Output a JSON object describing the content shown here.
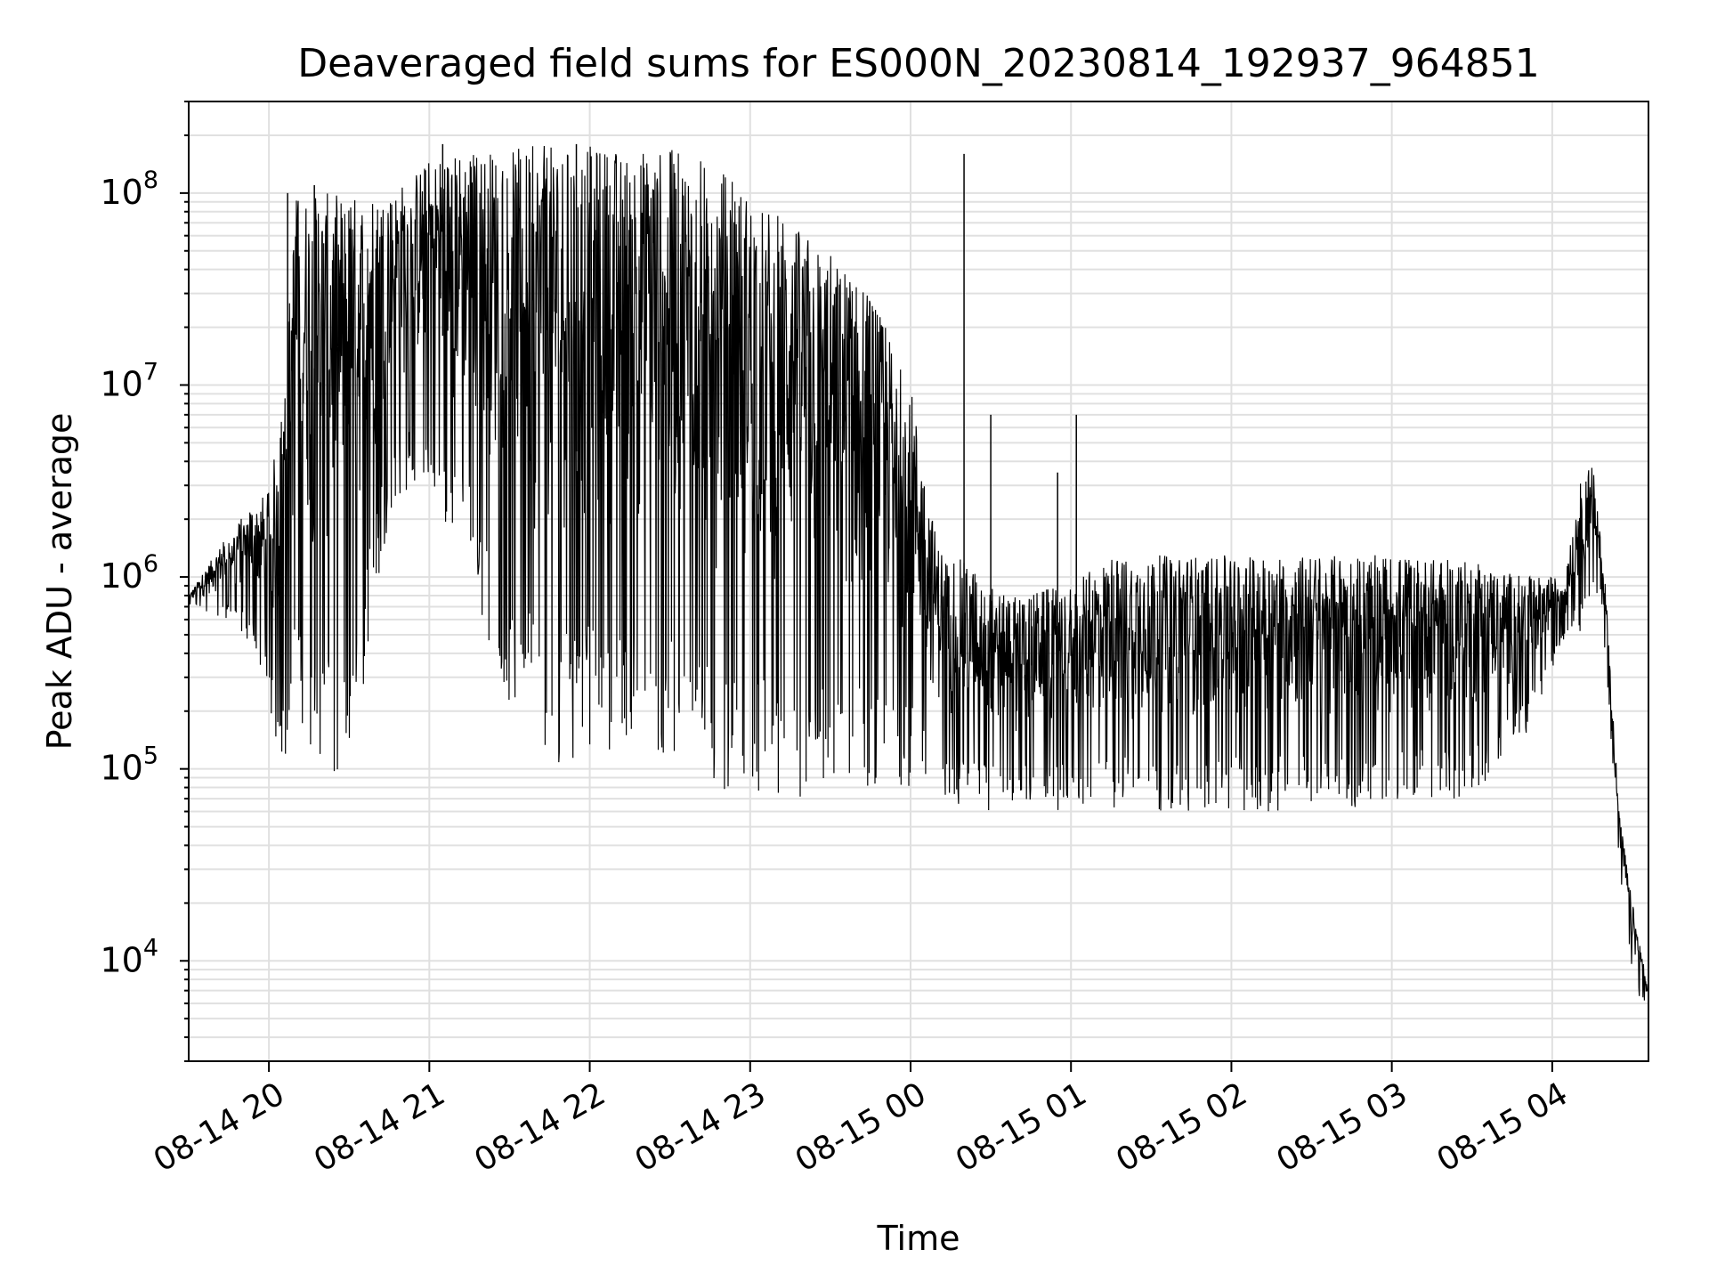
{
  "chart_data": {
    "type": "line",
    "title": "Deaveraged field sums for ES000N_20230814_192937_964851",
    "xlabel": "Time",
    "ylabel": "Peak ADU - average",
    "yscale": "log",
    "grid": true,
    "line_color": "#000000",
    "grid_color": "#e0e0e0",
    "xlim": [
      "2023-08-14 19:30",
      "2023-08-15 04:36"
    ],
    "ylim": [
      3000,
      300000000
    ],
    "x_ticks": [
      {
        "t": "2023-08-14 20:00",
        "label": "08-14 20"
      },
      {
        "t": "2023-08-14 21:00",
        "label": "08-14 21"
      },
      {
        "t": "2023-08-14 22:00",
        "label": "08-14 22"
      },
      {
        "t": "2023-08-14 23:00",
        "label": "08-14 23"
      },
      {
        "t": "2023-08-15 00:00",
        "label": "08-15 00"
      },
      {
        "t": "2023-08-15 01:00",
        "label": "08-15 01"
      },
      {
        "t": "2023-08-15 02:00",
        "label": "08-15 02"
      },
      {
        "t": "2023-08-15 03:00",
        "label": "08-15 03"
      },
      {
        "t": "2023-08-15 04:00",
        "label": "08-15 04"
      }
    ],
    "y_ticks": [
      {
        "value": 10000,
        "base": "10",
        "exp": "4"
      },
      {
        "value": 100000,
        "base": "10",
        "exp": "5"
      },
      {
        "value": 1000000,
        "base": "10",
        "exp": "6"
      },
      {
        "value": 10000000,
        "base": "10",
        "exp": "7"
      },
      {
        "value": 100000000,
        "base": "10",
        "exp": "8"
      }
    ],
    "series": [
      {
        "envelope": [
          {
            "t": "2023-08-14 19:30",
            "low": 700000,
            "high": 800000
          },
          {
            "t": "2023-08-14 19:45",
            "low": 600000,
            "high": 1700000
          },
          {
            "t": "2023-08-14 19:55",
            "low": 400000,
            "high": 2500000
          },
          {
            "t": "2023-08-14 20:00",
            "low": 200000,
            "high": 2800000
          },
          {
            "t": "2023-08-14 20:05",
            "low": 90000,
            "high": 8000000
          },
          {
            "t": "2023-08-14 20:10",
            "low": 200000,
            "high": 100000000
          },
          {
            "t": "2023-08-14 20:20",
            "low": 90000,
            "high": 100000000
          },
          {
            "t": "2023-08-14 20:30",
            "low": 90000,
            "high": 100000000
          },
          {
            "t": "2023-08-14 20:45",
            "low": 2000000,
            "high": 100000000
          },
          {
            "t": "2023-08-14 21:00",
            "low": 3000000,
            "high": 150000000
          },
          {
            "t": "2023-08-14 21:15",
            "low": 1000000,
            "high": 170000000
          },
          {
            "t": "2023-08-14 21:30",
            "low": 200000,
            "high": 170000000
          },
          {
            "t": "2023-08-14 21:45",
            "low": 100000,
            "high": 180000000
          },
          {
            "t": "2023-08-14 22:00",
            "low": 120000,
            "high": 180000000
          },
          {
            "t": "2023-08-14 22:15",
            "low": 130000,
            "high": 170000000
          },
          {
            "t": "2023-08-14 22:30",
            "low": 100000,
            "high": 170000000
          },
          {
            "t": "2023-08-14 22:45",
            "low": 80000,
            "high": 150000000
          },
          {
            "t": "2023-08-14 23:00",
            "low": 70000,
            "high": 100000000
          },
          {
            "t": "2023-08-14 23:15",
            "low": 70000,
            "high": 70000000
          },
          {
            "t": "2023-08-14 23:30",
            "low": 70000,
            "high": 50000000
          },
          {
            "t": "2023-08-14 23:45",
            "low": 80000,
            "high": 30000000
          },
          {
            "t": "2023-08-15 00:00",
            "low": 80000,
            "high": 10000000
          },
          {
            "t": "2023-08-15 00:10",
            "low": 70000,
            "high": 1500000
          },
          {
            "t": "2023-08-15 00:20",
            "low": 60000,
            "high": 1200000
          },
          {
            "t": "2023-08-15 00:35",
            "low": 60000,
            "high": 800000
          },
          {
            "t": "2023-08-15 01:00",
            "low": 60000,
            "high": 900000
          },
          {
            "t": "2023-08-15 01:15",
            "low": 60000,
            "high": 1300000
          },
          {
            "t": "2023-08-15 01:30",
            "low": 60000,
            "high": 1300000
          },
          {
            "t": "2023-08-15 02:00",
            "low": 60000,
            "high": 1300000
          },
          {
            "t": "2023-08-15 02:30",
            "low": 60000,
            "high": 1300000
          },
          {
            "t": "2023-08-15 03:00",
            "low": 65000,
            "high": 1300000
          },
          {
            "t": "2023-08-15 03:30",
            "low": 70000,
            "high": 1200000
          },
          {
            "t": "2023-08-15 03:50",
            "low": 150000,
            "high": 1000000
          },
          {
            "t": "2023-08-15 04:05",
            "low": 500000,
            "high": 1000000
          },
          {
            "t": "2023-08-15 04:10",
            "low": 500000,
            "high": 3000000
          },
          {
            "t": "2023-08-15 04:15",
            "low": 800000,
            "high": 4000000
          },
          {
            "t": "2023-08-15 04:20",
            "low": 400000,
            "high": 900000
          },
          {
            "t": "2023-08-15 04:25",
            "low": 30000,
            "high": 60000
          },
          {
            "t": "2023-08-15 04:30",
            "low": 8000,
            "high": 20000
          },
          {
            "t": "2023-08-15 04:36",
            "low": 5000,
            "high": 7000
          }
        ],
        "spikes": [
          {
            "t": "2023-08-14 20:07",
            "value": 100000000
          },
          {
            "t": "2023-08-14 20:17",
            "value": 110000000
          },
          {
            "t": "2023-08-14 21:05",
            "value": 180000000
          },
          {
            "t": "2023-08-14 21:55",
            "value": 180000000
          },
          {
            "t": "2023-08-15 00:20",
            "value": 160000000
          },
          {
            "t": "2023-08-15 00:30",
            "value": 7000000
          },
          {
            "t": "2023-08-15 00:55",
            "value": 3500000
          },
          {
            "t": "2023-08-15 01:02",
            "value": 7000000
          }
        ]
      }
    ]
  }
}
